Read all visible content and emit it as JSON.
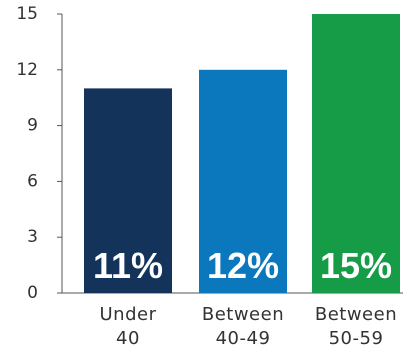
{
  "chart_data": {
    "type": "bar",
    "categories": [
      [
        "Under",
        "40"
      ],
      [
        "Between",
        "40-49"
      ],
      [
        "Between",
        "50-59"
      ]
    ],
    "values": [
      11,
      12,
      15
    ],
    "data_labels": [
      "11%",
      "12%",
      "15%"
    ],
    "colors": [
      "#14335a",
      "#0b78be",
      "#169c47"
    ],
    "yticks": [
      "0",
      "3",
      "6",
      "9",
      "12",
      "15"
    ],
    "ylim": [
      0,
      15
    ],
    "grid": false,
    "title": "",
    "xlabel": "",
    "ylabel": ""
  }
}
